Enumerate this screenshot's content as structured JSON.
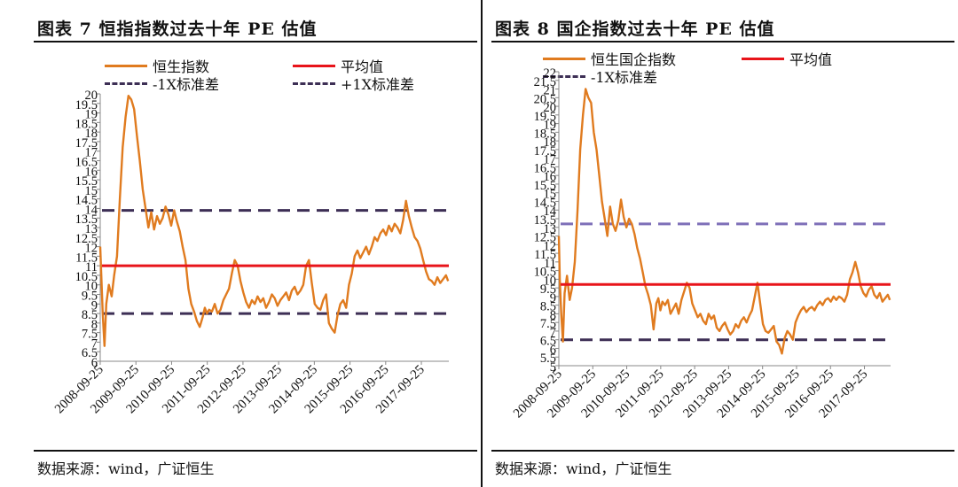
{
  "left": {
    "title": "图表 7  恒指指数过去十年 PE 估值",
    "source": "数据来源：wind，广证恒生",
    "legend": [
      "恒生指数",
      "平均值",
      "-1X标准差",
      "+1X标准差"
    ]
  },
  "right": {
    "title": "图表 8 国企指数过去十年 PE 估值",
    "source": "数据来源：wind，广证恒生",
    "legend": [
      "恒生国企指数",
      "平均值",
      "-1X标准差"
    ]
  },
  "colors": {
    "series": "#E07B1F",
    "mean": "#E8141A",
    "sd_dark": "#3D2F55",
    "sd_light": "#7E6FB8"
  },
  "chart_data": [
    {
      "type": "line",
      "title": "图表 7  恒指指数过去十年 PE 估值",
      "ylim": [
        6,
        20
      ],
      "ytick_labels": [
        "6",
        "6.5",
        "7",
        "7.5",
        "8",
        "8.5",
        "9",
        "9.5",
        "10",
        "10.5",
        "11",
        "11.5",
        "12",
        "12.5",
        "13",
        "13.5",
        "14",
        "14.5",
        "15",
        "15.5",
        "16",
        "16.5",
        "17",
        "17.5",
        "18",
        "18.5",
        "19",
        "19.5",
        "20"
      ],
      "xtick_labels": [
        "2008-09-25",
        "2009-09-25",
        "2010-09-25",
        "2011-09-25",
        "2012-09-25",
        "2013-09-25",
        "2014-09-25",
        "2015-09-25",
        "2016-09-25",
        "2017-09-25"
      ],
      "series": [
        {
          "name": "恒生指数",
          "x": [
            2008.73,
            2008.76,
            2008.8,
            2008.85,
            2008.9,
            2008.97,
            2009.05,
            2009.12,
            2009.2,
            2009.28,
            2009.36,
            2009.44,
            2009.52,
            2009.6,
            2009.68,
            2009.76,
            2009.84,
            2009.92,
            2010.0,
            2010.08,
            2010.16,
            2010.24,
            2010.32,
            2010.4,
            2010.48,
            2010.56,
            2010.64,
            2010.72,
            2010.8,
            2010.88,
            2010.96,
            2011.04,
            2011.12,
            2011.2,
            2011.28,
            2011.36,
            2011.44,
            2011.52,
            2011.6,
            2011.66,
            2011.72,
            2011.78,
            2011.86,
            2011.94,
            2012.02,
            2012.1,
            2012.18,
            2012.26,
            2012.34,
            2012.42,
            2012.5,
            2012.58,
            2012.66,
            2012.74,
            2012.82,
            2012.9,
            2012.98,
            2013.06,
            2013.14,
            2013.22,
            2013.3,
            2013.38,
            2013.46,
            2013.54,
            2013.62,
            2013.7,
            2013.78,
            2013.86,
            2013.94,
            2014.02,
            2014.1,
            2014.18,
            2014.26,
            2014.34,
            2014.42,
            2014.5,
            2014.58,
            2014.66,
            2014.74,
            2014.82,
            2014.9,
            2014.98,
            2015.06,
            2015.14,
            2015.22,
            2015.3,
            2015.38,
            2015.46,
            2015.54,
            2015.62,
            2015.7,
            2015.78,
            2015.86,
            2015.94,
            2016.02,
            2016.1,
            2016.18,
            2016.26,
            2016.34,
            2016.42,
            2016.5,
            2016.58,
            2016.66,
            2016.74,
            2016.82,
            2016.9,
            2016.98,
            2017.06,
            2017.14,
            2017.22,
            2017.3,
            2017.38,
            2017.46,
            2017.54,
            2017.62,
            2017.7,
            2017.78,
            2017.86,
            2017.94,
            2018.02,
            2018.1,
            2018.18,
            2018.26,
            2018.34,
            2018.42,
            2018.48
          ],
          "values": [
            12.0,
            10.5,
            8.5,
            6.8,
            9.0,
            10.0,
            9.4,
            10.5,
            11.5,
            14.5,
            17.2,
            18.8,
            19.9,
            19.7,
            19.2,
            17.8,
            16.5,
            15.0,
            14.0,
            13.0,
            13.8,
            12.9,
            13.6,
            13.2,
            13.5,
            14.1,
            13.7,
            13.1,
            13.9,
            13.3,
            12.8,
            12.0,
            11.3,
            9.8,
            9.0,
            8.6,
            8.1,
            7.8,
            8.3,
            8.8,
            8.5,
            8.7,
            8.6,
            9.0,
            8.5,
            8.7,
            9.2,
            9.5,
            9.8,
            10.6,
            11.3,
            11.0,
            10.2,
            9.6,
            9.1,
            8.8,
            9.2,
            9.0,
            9.4,
            9.1,
            9.3,
            8.8,
            9.1,
            9.5,
            9.3,
            8.9,
            9.2,
            9.4,
            9.6,
            9.2,
            9.7,
            9.9,
            9.5,
            9.7,
            10.0,
            11.0,
            11.3,
            10.1,
            9.0,
            8.8,
            8.7,
            9.2,
            9.5,
            8.0,
            7.7,
            7.5,
            8.4,
            9.0,
            9.2,
            8.8,
            10.0,
            10.6,
            11.5,
            11.8,
            11.4,
            11.7,
            12.0,
            11.6,
            12.0,
            12.5,
            12.3,
            12.7,
            12.9,
            12.6,
            13.1,
            12.8,
            13.2,
            13.0,
            12.7,
            13.4,
            14.4,
            13.6,
            13.0,
            12.5,
            12.3,
            11.9,
            11.3,
            10.7,
            10.3,
            10.2,
            10.0,
            10.4,
            10.1,
            10.3,
            10.5,
            10.2
          ]
        },
        {
          "name": "平均值",
          "value": 11.0
        },
        {
          "name": "-1X标准差",
          "value": 8.5
        },
        {
          "name": "+1X标准差",
          "value": 13.9
        }
      ]
    },
    {
      "type": "line",
      "title": "图表 8 国企指数过去十年 PE 估值",
      "ylim": [
        5,
        22
      ],
      "ytick_labels": [
        "5",
        "5.5",
        "6",
        "6.5",
        "7",
        "7.5",
        "8",
        "8.5",
        "9",
        "9.5",
        "10",
        "10.5",
        "11",
        "11.5",
        "12",
        "12.5",
        "13",
        "13.5",
        "14",
        "14.5",
        "15",
        "15.5",
        "16",
        "16.5",
        "17",
        "17.5",
        "18",
        "18.5",
        "19",
        "19.5",
        "20",
        "20.5",
        "21",
        "21.5",
        "22"
      ],
      "xtick_labels": [
        "2008-09-25",
        "2009-09-25",
        "2010-09-25",
        "2011-09-25",
        "2012-09-25",
        "2013-09-25",
        "2014-09-25",
        "2015-09-25",
        "2016-09-25",
        "2017-09-25"
      ],
      "series": [
        {
          "name": "恒生国企指数",
          "x": [
            2008.73,
            2008.76,
            2008.8,
            2008.85,
            2008.9,
            2008.97,
            2009.05,
            2009.12,
            2009.2,
            2009.28,
            2009.36,
            2009.44,
            2009.52,
            2009.6,
            2009.68,
            2009.76,
            2009.84,
            2009.92,
            2010.0,
            2010.08,
            2010.16,
            2010.24,
            2010.32,
            2010.4,
            2010.48,
            2010.56,
            2010.64,
            2010.72,
            2010.8,
            2010.88,
            2010.96,
            2011.04,
            2011.12,
            2011.2,
            2011.28,
            2011.36,
            2011.44,
            2011.52,
            2011.6,
            2011.66,
            2011.72,
            2011.78,
            2011.86,
            2011.94,
            2012.02,
            2012.1,
            2012.18,
            2012.26,
            2012.34,
            2012.42,
            2012.5,
            2012.58,
            2012.66,
            2012.74,
            2012.82,
            2012.9,
            2012.98,
            2013.06,
            2013.14,
            2013.22,
            2013.3,
            2013.38,
            2013.46,
            2013.54,
            2013.62,
            2013.7,
            2013.78,
            2013.86,
            2013.94,
            2014.02,
            2014.1,
            2014.18,
            2014.26,
            2014.34,
            2014.42,
            2014.5,
            2014.58,
            2014.66,
            2014.74,
            2014.82,
            2014.9,
            2014.98,
            2015.06,
            2015.14,
            2015.22,
            2015.3,
            2015.38,
            2015.46,
            2015.54,
            2015.62,
            2015.7,
            2015.78,
            2015.86,
            2015.94,
            2016.02,
            2016.1,
            2016.18,
            2016.26,
            2016.34,
            2016.42,
            2016.5,
            2016.58,
            2016.66,
            2016.74,
            2016.82,
            2016.9,
            2016.98,
            2017.06,
            2017.14,
            2017.22,
            2017.3,
            2017.38,
            2017.46,
            2017.54,
            2017.62,
            2017.7,
            2017.78,
            2017.86,
            2017.94,
            2018.02,
            2018.1,
            2018.18,
            2018.26,
            2018.34,
            2018.42,
            2018.48
          ],
          "values": [
            12.5,
            10.0,
            8.0,
            6.4,
            9.2,
            10.2,
            8.8,
            9.5,
            11.0,
            14.0,
            17.5,
            19.5,
            21.0,
            20.5,
            20.2,
            18.5,
            17.5,
            16.0,
            14.5,
            13.5,
            12.5,
            14.2,
            13.2,
            12.8,
            13.4,
            14.6,
            13.6,
            13.0,
            13.5,
            13.2,
            12.6,
            11.8,
            11.2,
            10.4,
            9.6,
            9.1,
            8.5,
            7.1,
            8.6,
            8.9,
            8.2,
            8.7,
            8.5,
            8.8,
            8.0,
            8.3,
            8.6,
            8.0,
            8.8,
            9.3,
            9.8,
            9.5,
            8.6,
            8.2,
            7.8,
            8.0,
            7.6,
            7.4,
            8.0,
            7.7,
            7.9,
            7.2,
            7.0,
            7.3,
            7.5,
            7.1,
            6.8,
            7.0,
            7.4,
            7.2,
            7.6,
            7.8,
            7.5,
            7.9,
            8.2,
            9.0,
            9.8,
            8.6,
            7.4,
            7.0,
            6.9,
            7.1,
            7.3,
            6.4,
            6.2,
            5.7,
            6.6,
            7.0,
            6.8,
            6.5,
            7.5,
            7.9,
            8.2,
            8.4,
            8.1,
            8.3,
            8.4,
            8.2,
            8.5,
            8.7,
            8.5,
            8.8,
            8.9,
            8.7,
            9.0,
            8.8,
            9.0,
            8.9,
            8.7,
            9.1,
            10.0,
            10.4,
            11.0,
            10.4,
            9.6,
            9.2,
            9.0,
            9.4,
            9.6,
            9.1,
            8.9,
            9.2,
            8.7,
            8.9,
            9.1,
            8.8
          ]
        },
        {
          "name": "平均值",
          "value": 9.7
        },
        {
          "name": "-1X标准差",
          "value": 6.5
        },
        {
          "name": "+1X标准差",
          "value": 13.2
        }
      ]
    }
  ]
}
